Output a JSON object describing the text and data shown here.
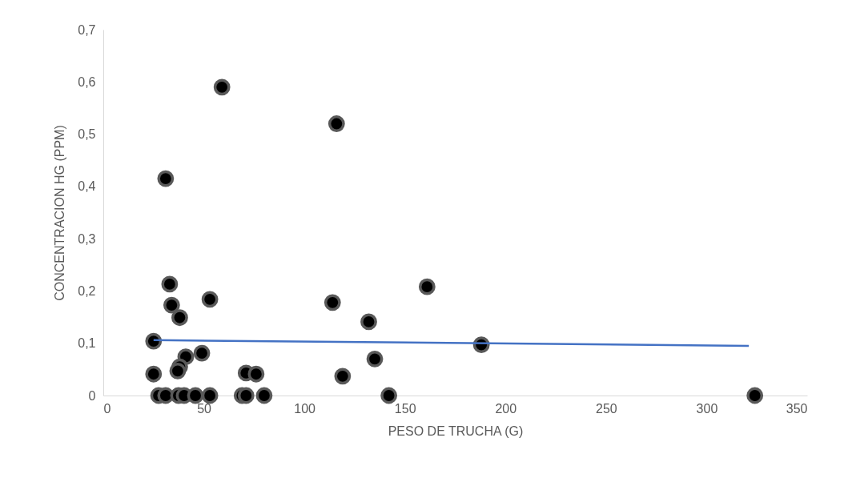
{
  "chart_data": {
    "type": "scatter",
    "xlabel": "PESO DE TRUCHA (G)",
    "ylabel": "CONCENTRACION HG (PPM)",
    "xlim": [
      0,
      350
    ],
    "xticks": [
      0,
      50,
      100,
      150,
      200,
      250,
      300,
      350
    ],
    "ylim": [
      0,
      0.7
    ],
    "yticks": [
      0,
      {
        "value": 0.1,
        "label": "0,1"
      },
      {
        "value": 0.2,
        "label": "0,2"
      },
      {
        "value": 0.3,
        "label": "0,3"
      },
      {
        "value": 0.4,
        "label": "0,4"
      },
      {
        "value": 0.5,
        "label": "0,5"
      },
      {
        "value": 0.6,
        "label": "0,6"
      },
      {
        "value": 0.7,
        "label": "0,7"
      }
    ],
    "grid": false,
    "marker": "circle",
    "series": [
      {
        "color": "#000000",
        "x": [
          59,
          116,
          31,
          33,
          34,
          38,
          53,
          114,
          161,
          132,
          25,
          188,
          135,
          49,
          41,
          38,
          37,
          25,
          71,
          76,
          119,
          27.5,
          31,
          37.4,
          40.2,
          45.8,
          53,
          69,
          71,
          80,
          142,
          324
        ],
        "values": [
          0.59,
          0.52,
          0.415,
          0.213,
          0.173,
          0.149,
          0.184,
          0.178,
          0.208,
          0.141,
          0.104,
          0.097,
          0.07,
          0.081,
          0.074,
          0.055,
          0.047,
          0.041,
          0.043,
          0.041,
          0.037,
          0,
          0,
          0,
          0,
          0,
          0,
          0,
          0,
          0,
          0,
          0
        ]
      },
      {
        "type": "line",
        "color": "#4472c4",
        "marker": "none",
        "x": [
          25,
          321
        ],
        "values": [
          0.106,
          0.095
        ]
      }
    ]
  }
}
